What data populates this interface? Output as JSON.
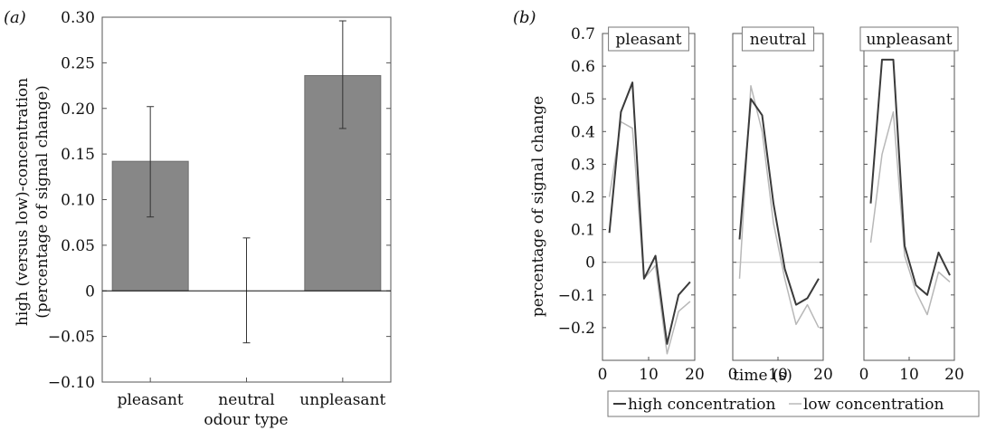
{
  "chart_data": [
    {
      "type": "bar",
      "panel_label": "(a)",
      "categories": [
        "pleasant",
        "neutral",
        "unpleasant"
      ],
      "values": [
        0.142,
        0.0,
        0.236
      ],
      "error_low": [
        0.081,
        -0.057,
        0.178
      ],
      "error_high": [
        0.202,
        0.058,
        0.296
      ],
      "bar_color": "#878787",
      "xlabel": "odour type",
      "ylabel_line1": "high (versus low)-concentration",
      "ylabel_line2": "(percentage of signal change)",
      "ylim": [
        -0.1,
        0.3
      ],
      "yticks": [
        -0.1,
        -0.05,
        0,
        0.05,
        0.1,
        0.15,
        0.2,
        0.25,
        0.3
      ],
      "ytick_labels": [
        "−0.10",
        "−0.05",
        "0",
        "0.05",
        "0.10",
        "0.15",
        "0.20",
        "0.25",
        "0.30"
      ]
    },
    {
      "type": "line",
      "panel_label": "(b)",
      "ylabel": "percentage of signal change",
      "xlabel": "time (s)",
      "ylim": [
        -0.3,
        0.7
      ],
      "xlim": [
        0,
        20
      ],
      "yticks": [
        -0.2,
        -0.1,
        0,
        0.1,
        0.2,
        0.3,
        0.4,
        0.5,
        0.6,
        0.7
      ],
      "ytick_labels": [
        "−0.2",
        "−0.1",
        "0",
        "0.1",
        "0.2",
        "0.3",
        "0.4",
        "0.5",
        "0.6",
        "0.7"
      ],
      "xticks": [
        0,
        10,
        20
      ],
      "xtick_labels": [
        "0",
        "10",
        "20"
      ],
      "x": [
        1.5,
        4,
        6.5,
        9,
        11.5,
        14,
        16.5,
        19
      ],
      "panels": [
        {
          "title": "pleasant",
          "series": [
            {
              "name": "high concentration",
              "color": "#3a3a3a",
              "values": [
                0.09,
                0.46,
                0.55,
                -0.05,
                0.02,
                -0.25,
                -0.1,
                -0.06
              ]
            },
            {
              "name": "low concentration",
              "color": "#b8b8b8",
              "values": [
                0.2,
                0.43,
                0.41,
                -0.05,
                -0.01,
                -0.28,
                -0.15,
                -0.12
              ]
            }
          ]
        },
        {
          "title": "neutral",
          "series": [
            {
              "name": "high concentration",
              "color": "#3a3a3a",
              "values": [
                0.07,
                0.5,
                0.45,
                0.18,
                -0.02,
                -0.13,
                -0.11,
                -0.05
              ]
            },
            {
              "name": "low concentration",
              "color": "#b8b8b8",
              "values": [
                -0.05,
                0.54,
                0.4,
                0.12,
                -0.05,
                -0.19,
                -0.13,
                -0.2
              ]
            }
          ]
        },
        {
          "title": "unpleasant",
          "series": [
            {
              "name": "high concentration",
              "color": "#3a3a3a",
              "values": [
                0.18,
                0.62,
                0.62,
                0.05,
                -0.07,
                -0.1,
                0.03,
                -0.04
              ]
            },
            {
              "name": "low concentration",
              "color": "#b8b8b8",
              "values": [
                0.06,
                0.33,
                0.46,
                0.02,
                -0.09,
                -0.16,
                -0.03,
                -0.06
              ]
            }
          ]
        }
      ],
      "legend": [
        {
          "label": "high concentration",
          "color": "#3a3a3a"
        },
        {
          "label": "low concentration",
          "color": "#b8b8b8"
        }
      ],
      "legend_position": "bottom"
    }
  ]
}
